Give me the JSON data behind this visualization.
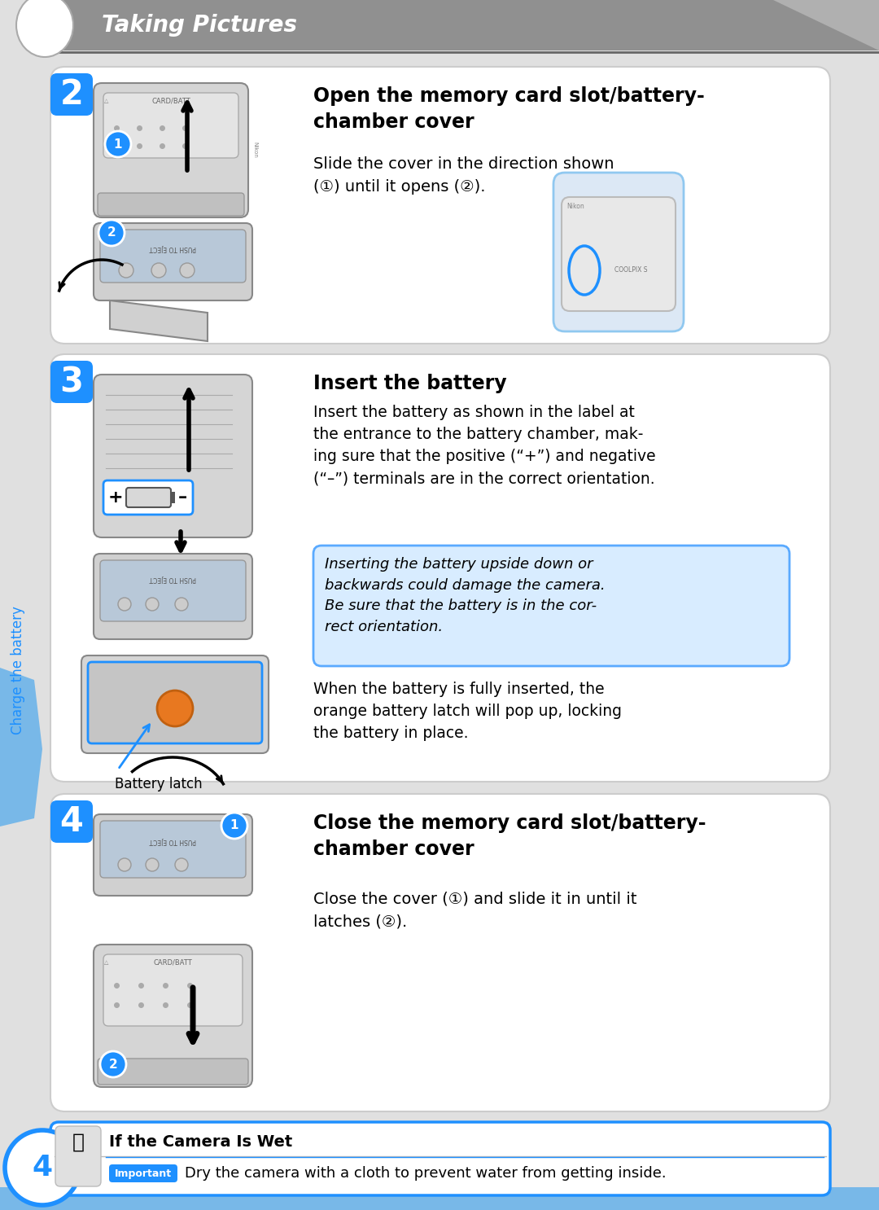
{
  "page_bg": "#e0e0e0",
  "header_bg": "#888888",
  "header_text": "Taking Pictures",
  "blue_accent": "#1e90ff",
  "blue_badge": "#1e90ff",
  "blue_light": "#a8d0f0",
  "blue_blob": "#7ab8e8",
  "orange": "#e87820",
  "warning_bg": "#d8ecff",
  "warning_border": "#5aaaff",
  "white": "#ffffff",
  "gray_body": "#d8d8d8",
  "gray_inner": "#e8e8e8",
  "gray_inner2": "#c8d8e4",
  "text_dark": "#222222",
  "step2_title": "Open the memory card slot/battery-\nchamber cover",
  "step2_body": "Slide the cover in the direction shown\n(①) until it opens (②).",
  "step3_title": "Insert the battery",
  "step3_body1": "Insert the battery as shown in the label at\nthe entrance to the battery chamber, mak-\ning sure that the positive (“+”) and negative\n(“–”) terminals are in the correct orientation.",
  "step3_warning": "Inserting the battery upside down or\nbackwards could damage the camera.\nBe sure that the battery is in the cor-\nrect orientation.",
  "step3_body2": "When the battery is fully inserted, the\norange battery latch will pop up, locking\nthe battery in place.",
  "step3_caption": "Battery latch",
  "step4_title": "Close the memory card slot/battery-\nchamber cover",
  "step4_body": "Close the cover (①) and slide it in until it\nlatches (②).",
  "warning_title": "If the Camera Is Wet",
  "warning_body": "Dry the camera with a cloth to prevent water from getting inside.",
  "page_number": "4",
  "side_label": "Charge the battery"
}
